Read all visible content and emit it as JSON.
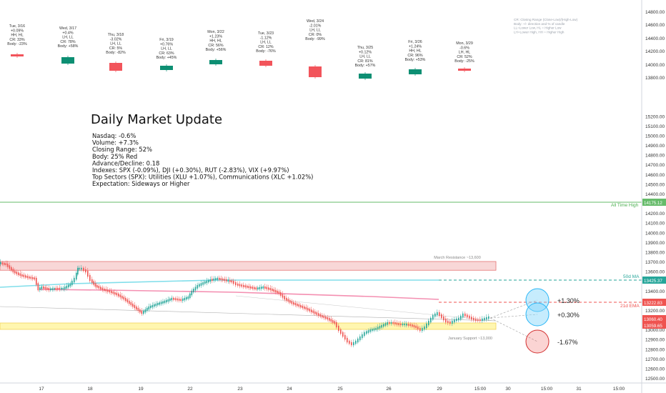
{
  "chart_data": {
    "type": "line",
    "title": "Daily Market Update",
    "stats": [
      "Nasdaq: -0.6%",
      "Volume: +7.3%",
      "Closing Range: 52%",
      "Body: 25% Red",
      "Advance/Decline: 0.18",
      "Indexes: SPX (-0.09%), DJI (+0.30%), RUT (-2.83%), VIX (+9.97%)",
      "Top Sectors (SPX): Utilities (XLU +1.07%), Communications (XLC +1.02%)",
      "Expectation: Sideways or Higher"
    ],
    "legend_note": [
      "CR: Closing Range (Close-Low)/(High-Low)",
      "Body: +/- direction and % of candle",
      "LL=Lower Low, HL = Higher Low",
      "LH=Lower High, HH = Higher High"
    ],
    "ylim": [
      12450,
      14880
    ],
    "y_ticks": [
      12500,
      12600,
      12700,
      12800,
      12900,
      13000,
      13100,
      13200,
      13300,
      13400,
      13500,
      13600,
      13700,
      13800,
      13900,
      14000,
      14100,
      14200,
      14300,
      14400,
      14500,
      14600,
      14700,
      14800
    ],
    "y_ticks_compressed": [
      {
        "label": "14800.00",
        "at": 14800
      },
      {
        "label": "14600.00",
        "at": 14600
      },
      {
        "label": "14400.00",
        "at": 14400
      },
      {
        "label": "14200.00",
        "at": 14200
      },
      {
        "label": "14000.00",
        "at": 14000
      },
      {
        "label": "13800.00",
        "at": 13800
      }
    ],
    "x_labels": [
      "17",
      "18",
      "19",
      "22",
      "23",
      "24",
      "25",
      "26",
      "29",
      "15:00",
      "30",
      "15:00",
      "31",
      "15:00"
    ],
    "price_tags": [
      {
        "label": "14175.12",
        "color": "#66bb6a"
      },
      {
        "label": "13425.37",
        "color": "#26a69a"
      },
      {
        "label": "13222.83",
        "color": "#ef5350"
      },
      {
        "label": "13060.40",
        "color": "#ef5350"
      },
      {
        "label": "13059.65",
        "color": "#ef5350"
      }
    ],
    "levels": [
      {
        "name": "All Time High",
        "value": 14175.12,
        "color": "#66bb6a"
      },
      {
        "name": "50d MA",
        "value": 13425.37,
        "color": "#26c6da"
      },
      {
        "name": "21d EMA",
        "value": 13222.83,
        "color": "#f06292"
      }
    ],
    "zones": [
      {
        "name": "March Resistance ~13,600",
        "low": 13610,
        "high": 13700,
        "color": "#ef9a9a"
      },
      {
        "name": "January Support ~13,000",
        "low": 13030,
        "high": 13090,
        "color": "#fff59d"
      }
    ],
    "scenarios": [
      {
        "label": "+1.30%",
        "color": "#4fc3f7"
      },
      {
        "label": "+0.30%",
        "color": "#4fc3f7"
      },
      {
        "label": "-1.67%",
        "color": "#ef5350"
      }
    ],
    "daily_summaries": [
      {
        "lines": [
          "Tue, 3/16",
          "+0.09%",
          "HH, HL",
          "CR: 33%",
          "Body: -23%"
        ],
        "up": false
      },
      {
        "lines": [
          "Wed, 3/17",
          "+0.4%",
          "LH, LL",
          "CR: 78%",
          "Body: +58%"
        ],
        "up": true
      },
      {
        "lines": [
          "Thu, 3/18",
          "-3.02%",
          "LH, LL",
          "CR: 5%",
          "Body: -82%"
        ],
        "up": false
      },
      {
        "lines": [
          "Fri, 3/19",
          "+0.76%",
          "LH, LL",
          "CR: 63%",
          "Body: +45%"
        ],
        "up": true
      },
      {
        "lines": [
          "Mon, 3/22",
          "+1.23%",
          "HH, HL",
          "CR: 56%",
          "Body: +56%"
        ],
        "up": true
      },
      {
        "lines": [
          "Tue, 3/23",
          "-1.12%",
          "LH, LL",
          "CR: 12%",
          "Body: -76%"
        ],
        "up": false
      },
      {
        "lines": [
          "Wed, 3/24",
          "-2.01%",
          "LH, LL",
          "CR: 0%",
          "Body: -99%"
        ],
        "up": false
      },
      {
        "lines": [
          "Thu, 3/25",
          "+0.12%",
          "LH, LL",
          "CR: 81%",
          "Body: +57%"
        ],
        "up": true
      },
      {
        "lines": [
          "Fri, 3/26",
          "+1.24%",
          "HH, HL",
          "CR: 96%",
          "Body: +53%"
        ],
        "up": true
      },
      {
        "lines": [
          "Mon, 3/29",
          "-0.6%",
          "LH, HL",
          "CR: 52%",
          "Body: -25%"
        ],
        "up": false
      }
    ],
    "colors": {
      "up": "#26a69a",
      "down": "#ef5350",
      "axis_text": "#333333",
      "grid": "#e0e3eb"
    }
  }
}
